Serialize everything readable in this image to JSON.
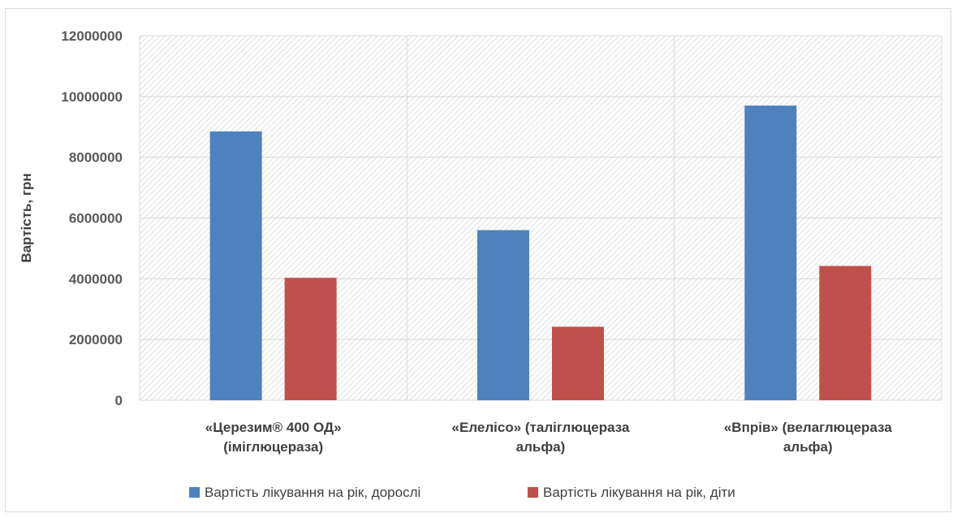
{
  "chart_data": {
    "type": "bar",
    "title": "",
    "ylabel": "Вартість, грн",
    "xlabel": "",
    "ylim": [
      0,
      12000000
    ],
    "yticks": [
      0,
      2000000,
      4000000,
      6000000,
      8000000,
      10000000,
      12000000
    ],
    "ytick_labels": [
      "0",
      "2000000",
      "4000000",
      "6000000",
      "8000000",
      "10000000",
      "12000000"
    ],
    "categories": [
      [
        "«Церезим® 400 ОД»",
        "(іміглюцераза)"
      ],
      [
        "«Елелісо» (таліглюцераза",
        "альфа)"
      ],
      [
        "«Впрів» (велаглюцераза",
        "альфа)"
      ]
    ],
    "series": [
      {
        "name": "Вартість лікування на рік, дорослі",
        "color": "#4f81bd",
        "values": [
          8850000,
          5600000,
          9700000
        ]
      },
      {
        "name": "Вартість лікування на рік, діти",
        "color": "#c0504d",
        "values": [
          4030000,
          2420000,
          4420000
        ]
      }
    ],
    "grid": true,
    "plot_background": "hatched",
    "legend": "bottom"
  }
}
